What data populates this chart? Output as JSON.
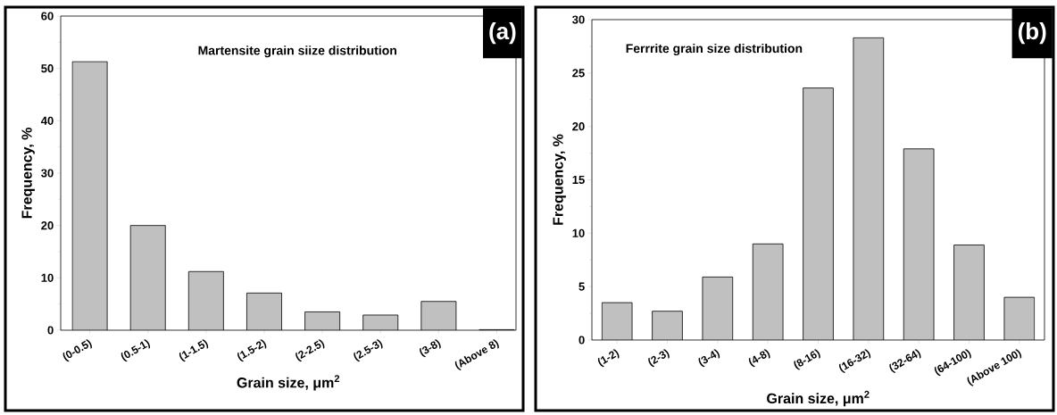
{
  "chart_data": [
    {
      "type": "bar",
      "title": "Martensite grain siize distribution",
      "xlabel": "Grain size, μm$^{2}$",
      "ylabel": "Frequency, %",
      "categories": [
        "(0-0.5)",
        "(0.5-1)",
        "(1-1.5)",
        "(1.5-2)",
        "(2-2.5)",
        "(2.5-3)",
        "(3-8)",
        "(Above 8)"
      ],
      "values": [
        51.3,
        20.0,
        11.2,
        7.1,
        3.5,
        2.9,
        5.5,
        0.1
      ],
      "color": "#c0c0c0",
      "ylim": [
        0,
        60
      ],
      "yticks": [
        0,
        10,
        20,
        30,
        40,
        50,
        60
      ],
      "grid": false,
      "annotations": [
        "(a)"
      ]
    },
    {
      "type": "bar",
      "title": "Ferrrite grain size distribution",
      "xlabel": "Grain size, μm$^{2}$",
      "ylabel": "Frequency, %",
      "categories": [
        "(1-2)",
        "(2-3)",
        "(3-4)",
        "(4-8)",
        "(8-16)",
        "(16-32)",
        "(32-64)",
        "(64-100)",
        "(Above 100)"
      ],
      "values": [
        3.5,
        2.7,
        5.9,
        9.0,
        23.6,
        28.3,
        17.9,
        8.9,
        4.0
      ],
      "color": "#c0c0c0",
      "ylim": [
        0,
        30
      ],
      "yticks": [
        0,
        5,
        10,
        15,
        20,
        25,
        30
      ],
      "grid": false,
      "annotations": [
        "(b)"
      ]
    }
  ]
}
